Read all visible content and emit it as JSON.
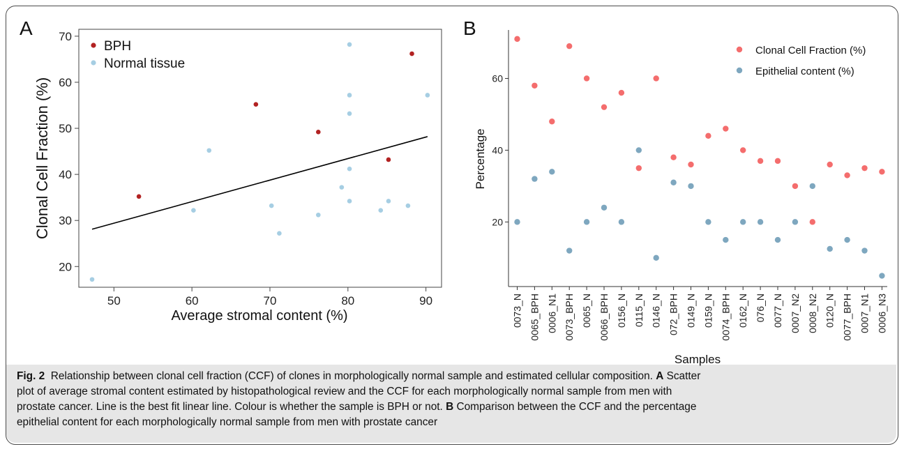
{
  "chart_data": [
    {
      "type": "scatter",
      "panel_label": "A",
      "xlabel": "Average stromal content (%)",
      "ylabel": "Clonal Cell Fraction (%)",
      "xlim": [
        45.5,
        92
      ],
      "ylim": [
        15.5,
        71.5
      ],
      "xticks": [
        50,
        60,
        70,
        80,
        90
      ],
      "yticks": [
        20,
        30,
        40,
        50,
        60,
        70
      ],
      "legend_position": "top-left",
      "grid": false,
      "series": [
        {
          "name": "BPH",
          "color": "#b22222",
          "points": [
            [
              53.2,
              35.2
            ],
            [
              68.2,
              55.2
            ],
            [
              76.2,
              49.2
            ],
            [
              85.2,
              43.2
            ],
            [
              88.2,
              66.2
            ]
          ]
        },
        {
          "name": "Normal tissue",
          "color": "#a6cee3",
          "points": [
            [
              47.2,
              17.2
            ],
            [
              60.2,
              32.2
            ],
            [
              62.2,
              45.2
            ],
            [
              70.2,
              33.2
            ],
            [
              71.2,
              27.2
            ],
            [
              76.2,
              31.2
            ],
            [
              79.2,
              37.2
            ],
            [
              80.2,
              68.2
            ],
            [
              80.2,
              57.2
            ],
            [
              80.2,
              53.2
            ],
            [
              80.2,
              41.2
            ],
            [
              80.2,
              34.2
            ],
            [
              84.2,
              32.2
            ],
            [
              85.2,
              34.2
            ],
            [
              87.7,
              33.2
            ],
            [
              90.2,
              57.2
            ]
          ]
        }
      ],
      "fit_line": {
        "x": [
          47.2,
          90.2
        ],
        "y": [
          28.1,
          48.2
        ],
        "color": "#000000"
      }
    },
    {
      "type": "scatter",
      "panel_label": "B",
      "xlabel": "Samples",
      "ylabel": "Percentage",
      "ylim": [
        2,
        73.5
      ],
      "yticks": [
        20,
        40,
        60
      ],
      "legend_position": "top-right",
      "grid": false,
      "categories": [
        "0073_N",
        "0065_BPH",
        "0006_N1",
        "0073_BPH",
        "0065_N",
        "0066_BPH",
        "0156_N",
        "0115_N",
        "0146_N",
        "072_BPH",
        "0149_N",
        "0159_N",
        "0074_BPH",
        "0162_N",
        "076_N",
        "0077_N",
        "0007_N2",
        "0008_N2",
        "0120_N",
        "0077_BPH",
        "0007_N1",
        "0006_N3"
      ],
      "series": [
        {
          "name": "Clonal Cell Fraction (%)",
          "color": "#f46d6d",
          "values": [
            71,
            58,
            48,
            69,
            60,
            52,
            56,
            35,
            60,
            38,
            36,
            44,
            46,
            40,
            37,
            37,
            30,
            20,
            36,
            33,
            35,
            34
          ]
        },
        {
          "name": "Epithelial content (%)",
          "color": "#7ea7bf",
          "values": [
            20,
            32,
            34,
            12,
            20,
            24,
            20,
            40,
            10,
            31,
            30,
            20,
            15,
            20,
            20,
            15,
            20,
            30,
            12.5,
            15,
            12,
            5
          ]
        }
      ]
    }
  ],
  "caption": {
    "fig_label": "Fig. 2",
    "line1": "Relationship between clonal cell fraction (CCF) of clones in morphologically normal sample and estimated cellular composition.",
    "label_a": "A",
    "line2_a": "Scatter",
    "line2": "plot of average stromal content estimated by histopathological review and the CCF for each morphologically normal sample from men with",
    "line3": "prostate cancer. Line is the best fit linear line. Colour is whether the sample is BPH or not.",
    "label_b": "B",
    "line3_b": "Comparison between the CCF and the percentage",
    "line4": "epithelial content for each morphologically normal sample from men with prostate cancer"
  }
}
